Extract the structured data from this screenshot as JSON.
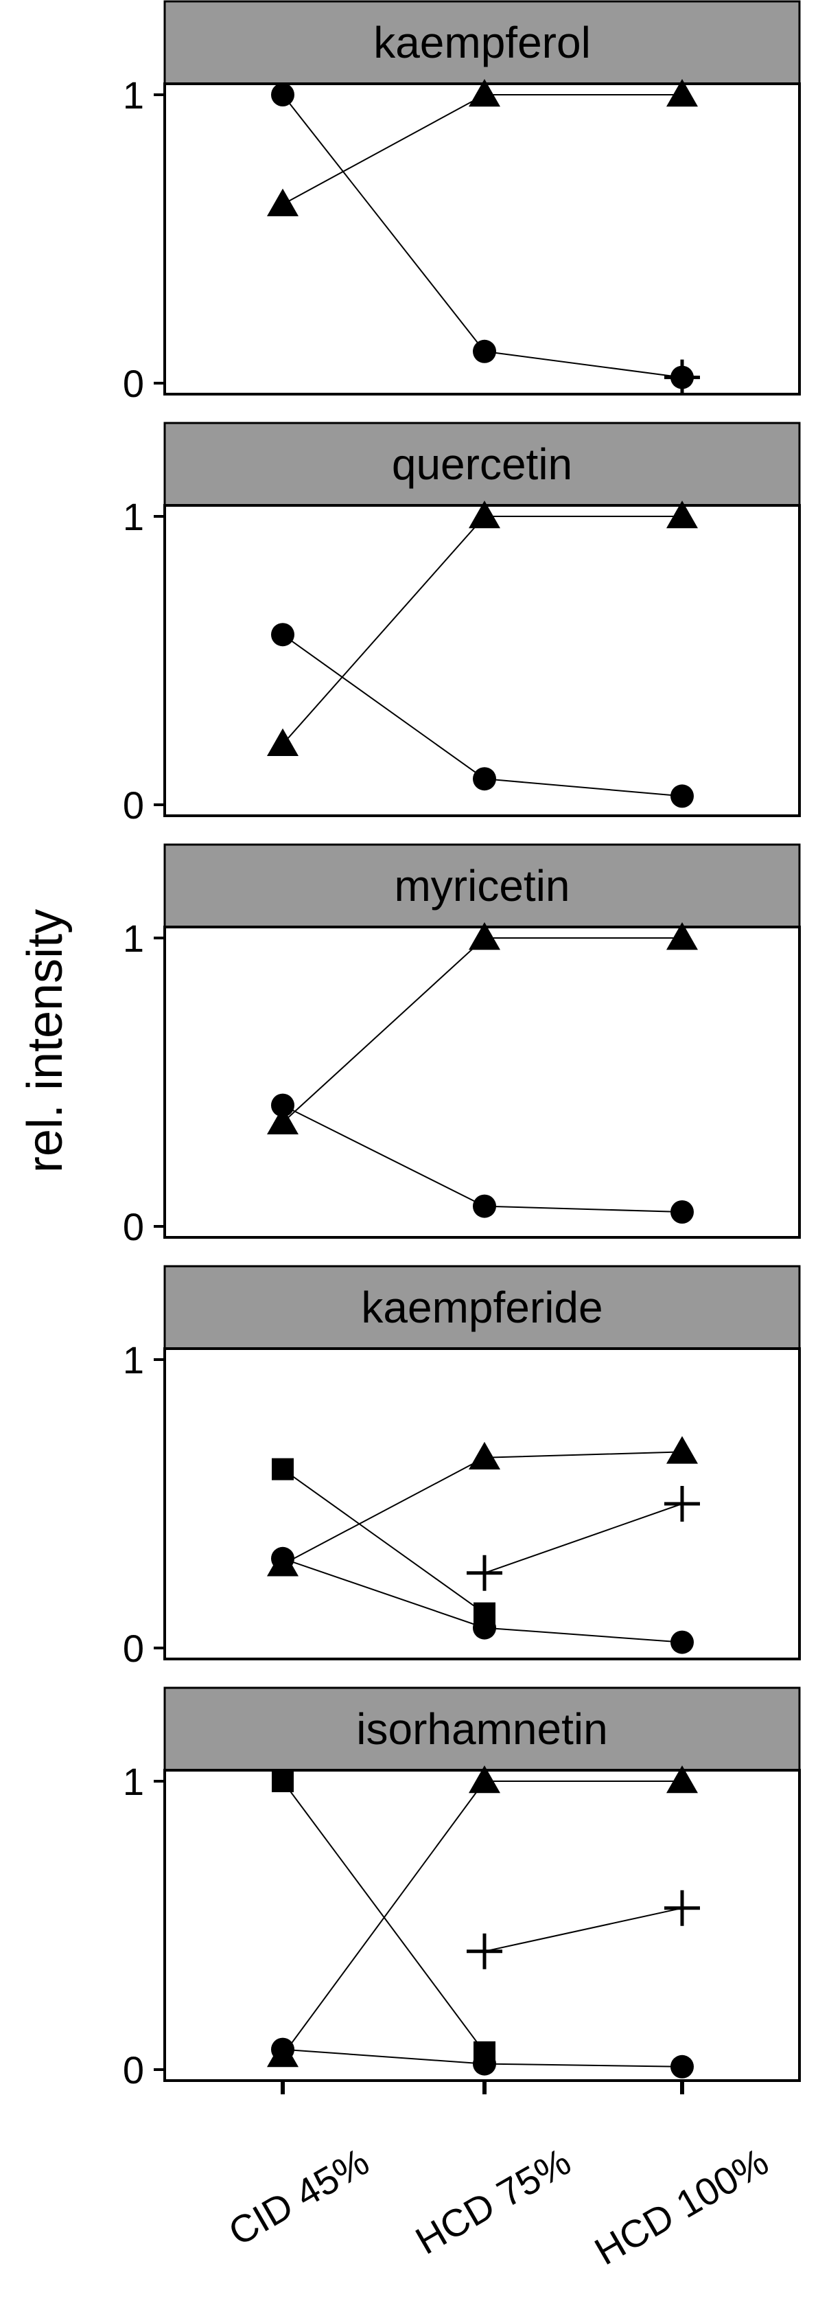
{
  "chart_data": {
    "type": "line",
    "ylabel": "rel. intensity",
    "xlabel": "",
    "categories": [
      "CID 45%",
      "HCD 75%",
      "HCD 100%"
    ],
    "ylim": [
      0,
      1
    ],
    "yticks": [
      0,
      1
    ],
    "grid": false,
    "legend": "none",
    "panels": [
      {
        "title": "kaempferol",
        "series": [
          {
            "marker": "triangle",
            "values": [
              0.62,
              1.0,
              1.0
            ]
          },
          {
            "marker": "circle",
            "values": [
              1.0,
              0.11,
              0.02
            ]
          },
          {
            "marker": "plus",
            "values": [
              null,
              null,
              0.02
            ]
          }
        ]
      },
      {
        "title": "quercetin",
        "series": [
          {
            "marker": "triangle",
            "values": [
              0.21,
              1.0,
              1.0
            ]
          },
          {
            "marker": "circle",
            "values": [
              0.59,
              0.09,
              0.03
            ]
          }
        ]
      },
      {
        "title": "myricetin",
        "series": [
          {
            "marker": "triangle",
            "values": [
              0.36,
              1.0,
              1.0
            ]
          },
          {
            "marker": "circle",
            "values": [
              0.42,
              0.07,
              0.05
            ]
          }
        ]
      },
      {
        "title": "kaempferide",
        "series": [
          {
            "marker": "triangle",
            "values": [
              0.29,
              0.66,
              0.68
            ]
          },
          {
            "marker": "circle",
            "values": [
              0.31,
              0.07,
              0.02
            ]
          },
          {
            "marker": "square",
            "values": [
              0.62,
              0.12,
              null
            ]
          },
          {
            "marker": "plus",
            "values": [
              null,
              0.26,
              0.5
            ]
          }
        ]
      },
      {
        "title": "isorhamnetin",
        "series": [
          {
            "marker": "triangle",
            "values": [
              0.05,
              1.0,
              1.0
            ]
          },
          {
            "marker": "circle",
            "values": [
              0.07,
              0.02,
              0.01
            ]
          },
          {
            "marker": "square",
            "values": [
              1.0,
              0.06,
              null
            ]
          },
          {
            "marker": "plus",
            "values": [
              null,
              0.41,
              0.56
            ]
          }
        ]
      }
    ]
  }
}
